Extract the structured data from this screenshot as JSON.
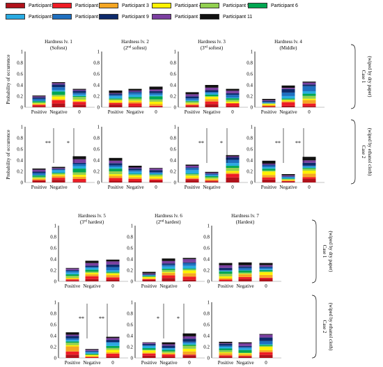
{
  "participants": [
    {
      "name": "Participant 1",
      "color": "#b0121b"
    },
    {
      "name": "Participant 2",
      "color": "#ee1c25"
    },
    {
      "name": "Participant 3",
      "color": "#f5a623"
    },
    {
      "name": "Participant 4",
      "color": "#fff200"
    },
    {
      "name": "Participant 5",
      "color": "#92d050"
    },
    {
      "name": "Participant 6",
      "color": "#00a651"
    },
    {
      "name": "Participant 7",
      "color": "#29abe2"
    },
    {
      "name": "Participant 8",
      "color": "#1f6fbf"
    },
    {
      "name": "Participant 9",
      "color": "#0d2a6b"
    },
    {
      "name": "Participant 10",
      "color": "#7b3fa0"
    },
    {
      "name": "Participant 11",
      "color": "#111111"
    }
  ],
  "y_axis_label": "Probability of occurrence",
  "y_ticks": [
    "0",
    "0.2",
    "0.4",
    "0.6",
    "0.8",
    "1"
  ],
  "case1_label": [
    "Case 1",
    "(wiped by dry paper)"
  ],
  "case2_label": [
    "Case 2",
    "(wiped by ethanol cloth)"
  ],
  "chart_data": {
    "type": "bar",
    "stacked": true,
    "categories": [
      "Positive",
      "Negative",
      "0"
    ],
    "ylim": [
      0,
      1
    ],
    "panels": [
      {
        "title": "Hardness lv. 1",
        "subtitle": "(Softest)",
        "case": 1,
        "totals": [
          0.21,
          0.45,
          0.33
        ],
        "annotations": []
      },
      {
        "title": "Hardness lv. 2",
        "subtitle": "(2nd softest)",
        "case": 1,
        "totals": [
          0.3,
          0.33,
          0.37
        ],
        "annotations": []
      },
      {
        "title": "Hardness lv. 3",
        "subtitle": "(3rd softest)",
        "case": 1,
        "totals": [
          0.27,
          0.4,
          0.33
        ],
        "annotations": []
      },
      {
        "title": "Hardness lv. 4",
        "subtitle": "(Middle)",
        "case": 1,
        "totals": [
          0.15,
          0.39,
          0.46
        ],
        "annotations": []
      },
      {
        "title": "Hardness lv. 1",
        "subtitle": "",
        "case": 2,
        "totals": [
          0.25,
          0.28,
          0.47
        ],
        "annotations": [
          "**",
          "*"
        ]
      },
      {
        "title": "Hardness lv. 2",
        "subtitle": "",
        "case": 2,
        "totals": [
          0.44,
          0.3,
          0.26
        ],
        "annotations": []
      },
      {
        "title": "Hardness lv. 3",
        "subtitle": "",
        "case": 2,
        "totals": [
          0.32,
          0.19,
          0.49
        ],
        "annotations": [
          "**",
          "*"
        ]
      },
      {
        "title": "Hardness lv. 4",
        "subtitle": "",
        "case": 2,
        "totals": [
          0.39,
          0.15,
          0.46
        ],
        "annotations": [
          "**",
          "**"
        ]
      },
      {
        "title": "Hardness lv. 5",
        "subtitle": "(3rd hardest)",
        "case": 1,
        "totals": [
          0.24,
          0.37,
          0.39
        ],
        "annotations": []
      },
      {
        "title": "Hardness lv. 6",
        "subtitle": "(2nd hardest)",
        "case": 1,
        "totals": [
          0.17,
          0.41,
          0.42
        ],
        "annotations": []
      },
      {
        "title": "Hardness lv. 7",
        "subtitle": "(Hardest)",
        "case": 1,
        "totals": [
          0.33,
          0.34,
          0.33
        ],
        "annotations": []
      },
      {
        "title": "Hardness lv. 5",
        "subtitle": "",
        "case": 2,
        "totals": [
          0.46,
          0.16,
          0.38
        ],
        "annotations": [
          "**",
          "**"
        ]
      },
      {
        "title": "Hardness lv. 6",
        "subtitle": "",
        "case": 2,
        "totals": [
          0.28,
          0.28,
          0.44
        ],
        "annotations": [
          "*",
          "*"
        ]
      },
      {
        "title": "Hardness lv. 7",
        "subtitle": "",
        "case": 2,
        "totals": [
          0.29,
          0.28,
          0.43
        ],
        "annotations": []
      }
    ]
  }
}
